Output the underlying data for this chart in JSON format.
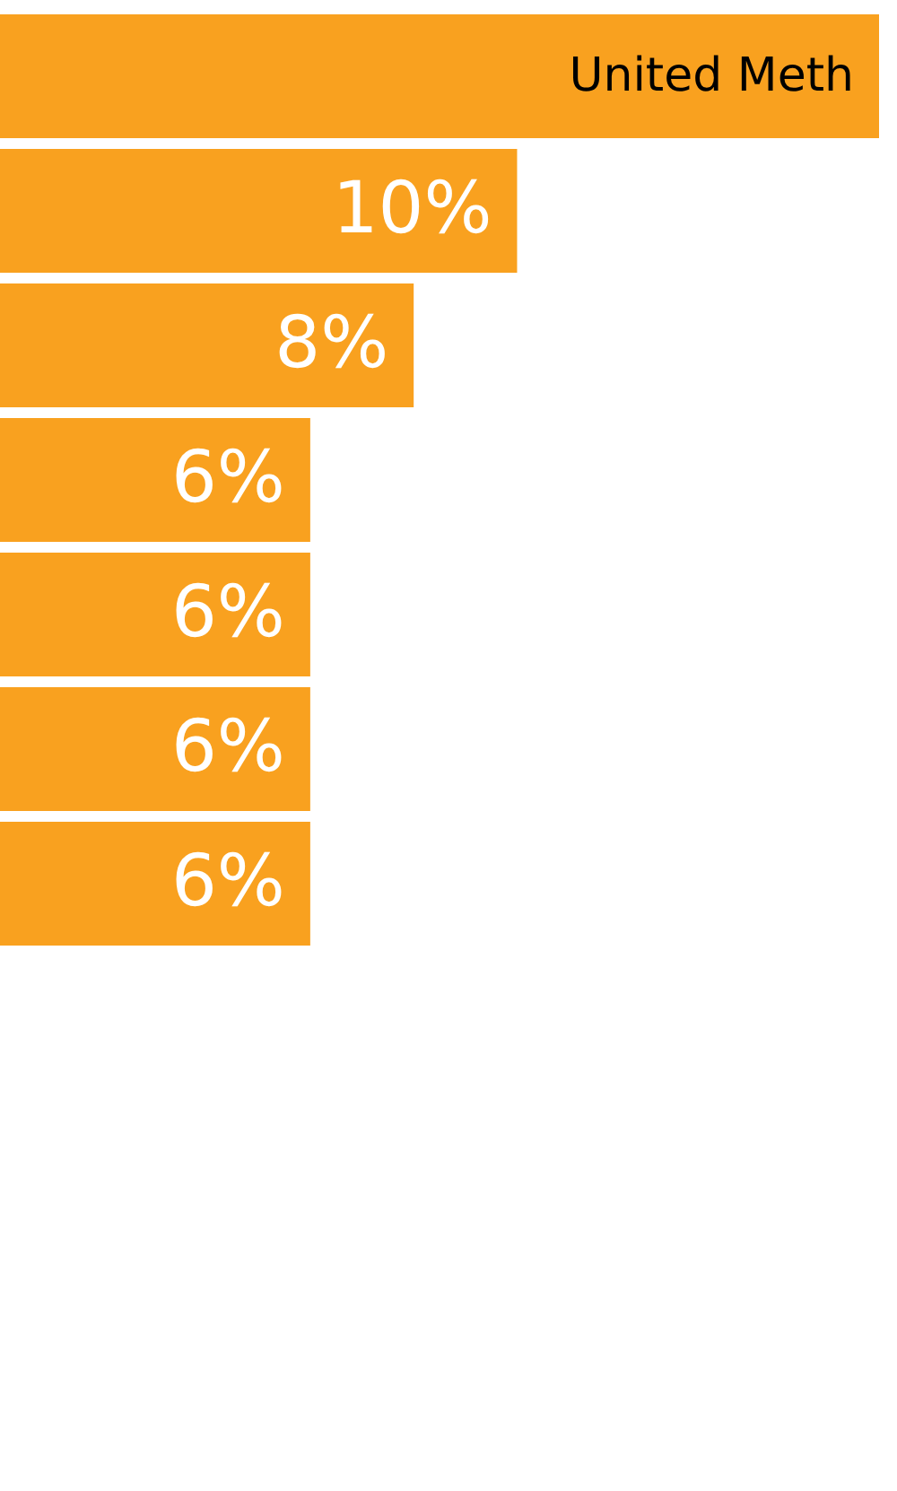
{
  "chart_data": {
    "type": "bar",
    "orientation": "horizontal",
    "categories": [
      "United Meth",
      null,
      null,
      null,
      null,
      null,
      null
    ],
    "values": [
      17,
      10,
      8,
      6,
      6,
      6,
      6
    ],
    "value_labels": [
      null,
      "10%",
      "8%",
      "6%",
      "6%",
      "6%",
      "6%"
    ],
    "color": "#f9a11f",
    "xlim": [
      0,
      17
    ],
    "tick_labels": false
  }
}
